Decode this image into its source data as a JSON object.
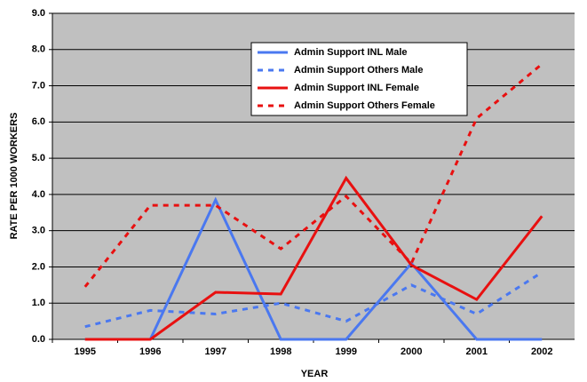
{
  "chart_data": {
    "type": "line",
    "x_label": "YEAR",
    "y_label": "RATE PER 1000 WORKERS",
    "categories": [
      "1995",
      "1996",
      "1997",
      "1998",
      "1999",
      "2000",
      "2001",
      "2002"
    ],
    "series": [
      {
        "name": "Admin Support INL Male",
        "color": "#4a78f0",
        "line_style": "solid",
        "values": [
          0,
          0,
          3.85,
          0,
          0,
          2.1,
          0,
          0
        ]
      },
      {
        "name": "Admin Support Others Male",
        "color": "#4a78f0",
        "line_style": "dotted",
        "values": [
          0.35,
          0.8,
          0.7,
          1.0,
          0.5,
          1.5,
          0.7,
          1.85
        ]
      },
      {
        "name": "Admin Support INL Female",
        "color": "#e81010",
        "line_style": "solid",
        "values": [
          0,
          0,
          1.3,
          1.25,
          4.45,
          2.05,
          1.1,
          3.4
        ]
      },
      {
        "name": "Admin Support Others Female",
        "color": "#e81010",
        "line_style": "dotted",
        "values": [
          1.45,
          3.7,
          3.7,
          2.5,
          3.95,
          2.1,
          6.1,
          7.6
        ]
      }
    ],
    "ylim": [
      0,
      9
    ],
    "yticks": [
      {
        "value": 0,
        "label": "0.0"
      },
      {
        "value": 1,
        "label": "1.0"
      },
      {
        "value": 2,
        "label": "2.0"
      },
      {
        "value": 3,
        "label": "3.0"
      },
      {
        "value": 4,
        "label": "4.0"
      },
      {
        "value": 5,
        "label": "5.0"
      },
      {
        "value": 6,
        "label": "6.0"
      },
      {
        "value": 7,
        "label": "7.0"
      },
      {
        "value": 8,
        "label": "8.0"
      },
      {
        "value": 9,
        "label": "9.0"
      }
    ],
    "grid": true,
    "plot_background": "#c0c0c0"
  }
}
